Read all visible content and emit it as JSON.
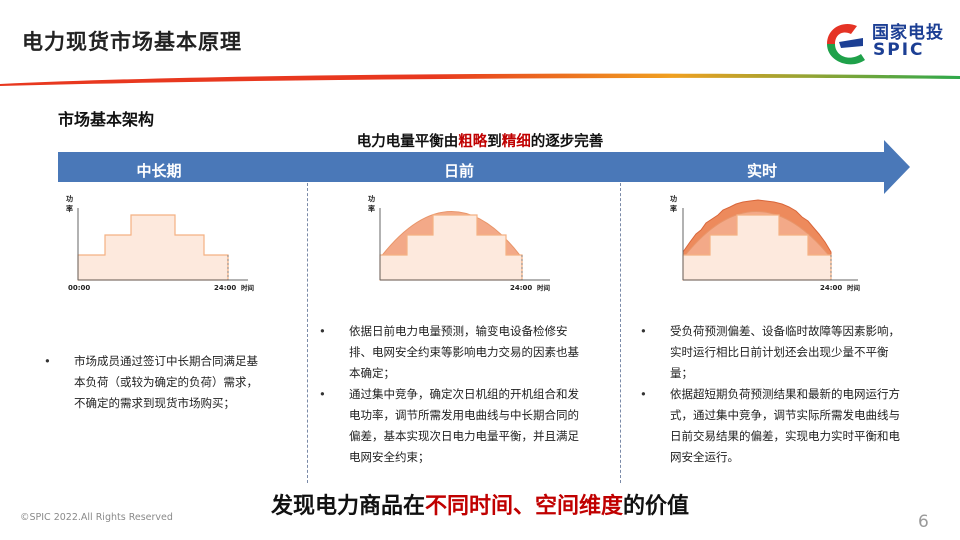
{
  "header": {
    "title": "电力现货市场基本原理",
    "logo_cn": "国家电投",
    "logo_en": "SPIC"
  },
  "section_title": "市场基本架构",
  "arrow_caption": {
    "pre": "电力电量平衡由",
    "hl1": "粗略",
    "mid": "到",
    "hl2": "精细",
    "post": "的逐步完善"
  },
  "phases": [
    "中长期",
    "日前",
    "实时"
  ],
  "charts": {
    "ylabel_top": "功",
    "ylabel_bottom": "率",
    "xlabel": "时间",
    "chart1_start": "00:00",
    "end_tick": "24:00"
  },
  "col1": {
    "bullets": [
      "市场成员通过签订中长期合同满足基本负荷（或较为确定的负荷）需求，不确定的需求到现货市场购买；"
    ]
  },
  "col2": {
    "bullets": [
      "依据日前电力电量预测，输变电设备检修安排、电网安全约束等影响电力交易的因素也基本确定；",
      "通过集中竞争，确定次日机组的开机组合和发电功率，调节所需发用电曲线与中长期合同的偏差，基本实现次日电力电量平衡，并且满足电网安全约束；"
    ]
  },
  "col3": {
    "bullets": [
      "受负荷预测偏差、设备临时故障等因素影响，实时运行相比日前计划还会出现少量不平衡量；",
      "依据超短期负荷预测结果和最新的电网运行方式，通过集中竞争，调节实际所需发电曲线与日前交易结果的偏差，实现电力实时平衡和电网安全运行。"
    ]
  },
  "conclusion": {
    "pre": "发现电力商品在",
    "hl": "不同时间、空间维度",
    "post": "的价值"
  },
  "footer": {
    "copyright": "©SPIC 2022.All Rights Reserved",
    "page_number": "6"
  },
  "colors": {
    "accent_red": "#c00000",
    "arrow_blue": "#4a78b8",
    "brand_blue": "#1c3f94",
    "chart_fill": "#f3a988",
    "step_fill": "#fde9dd"
  }
}
